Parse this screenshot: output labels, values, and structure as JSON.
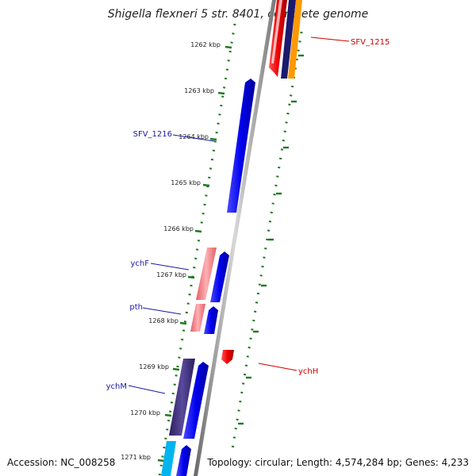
{
  "title": "Shigella flexneri 5 str. 8401, complete genome",
  "footer": {
    "accession": "Accession: NC_008258",
    "topology": "Topology: circular; Length: 4,574,284 bp; Genes: 4,233"
  },
  "ticks": [
    "1262 kbp",
    "1263 kbp",
    "1264 kbp",
    "1265 kbp",
    "1266 kbp",
    "1267 kbp",
    "1268 kbp",
    "1269 kbp",
    "1270 kbp",
    "1271 kbp"
  ],
  "gene_labels": {
    "sfv1215": "SFV_1215",
    "sfv1216": "SFV_1216",
    "ychF": "ychF",
    "pth": "pth",
    "ychH": "ychH",
    "ychM": "ychM"
  },
  "colors": {
    "backbone": "#888888",
    "forward_cds": "#0000ee",
    "reverse_red": "#ee0000",
    "pink": "#f07a80",
    "navy": "#3b2f7a",
    "orange": "#ff9900",
    "cyan": "#00b4ee",
    "tick_green": "#1e7a1e"
  }
}
